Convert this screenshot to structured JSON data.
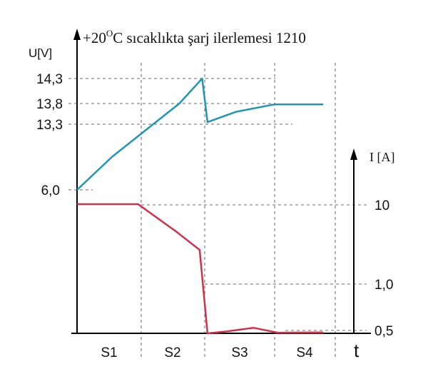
{
  "chart_data": {
    "type": "line",
    "title_prefix": "+20",
    "title_sup": "O",
    "title_suffix": "C sıcaklıkta şarj ilerlemesi 1210",
    "left_axis_label": "U[V]",
    "right_axis_label": "I [A]",
    "x_axis_label": "t",
    "phases": [
      "S1",
      "S2",
      "S3",
      "S4"
    ],
    "voltage_ticks": [
      "6,0",
      "13,3",
      "13,8",
      "14,3"
    ],
    "current_ticks": [
      "10",
      "1,0",
      "0,5"
    ],
    "series": [
      {
        "id": "voltage",
        "color": "#2196b3",
        "points": [
          [
            0.0,
            6.0
          ],
          [
            0.55,
            9.7
          ],
          [
            1.6,
            13.8
          ],
          [
            1.96,
            14.3
          ],
          [
            2.04,
            13.35
          ],
          [
            2.45,
            13.6
          ],
          [
            3.0,
            13.78
          ],
          [
            3.8,
            13.78
          ]
        ]
      },
      {
        "id": "current",
        "color": "#d0304a",
        "points": [
          [
            0.0,
            10.5
          ],
          [
            0.95,
            10.5
          ],
          [
            1.55,
            4.6
          ],
          [
            1.92,
            2.7
          ],
          [
            2.04,
            0.28
          ],
          [
            2.3,
            0.4
          ],
          [
            2.7,
            0.52
          ],
          [
            3.05,
            0.32
          ],
          [
            3.8,
            0.34
          ]
        ]
      }
    ]
  }
}
